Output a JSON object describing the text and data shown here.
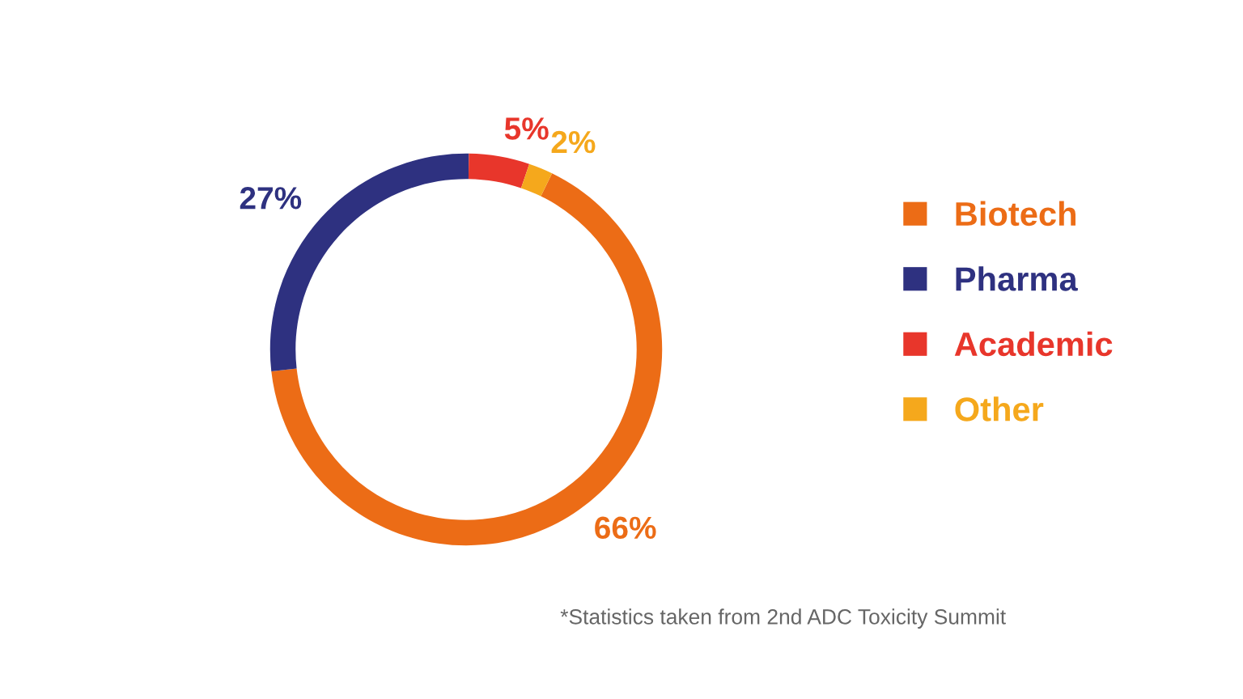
{
  "chart_data": {
    "type": "donut",
    "categories": [
      "Biotech",
      "Pharma",
      "Academic",
      "Other"
    ],
    "values": [
      66,
      27,
      5,
      2
    ],
    "colors": [
      "#ec6c16",
      "#2e3180",
      "#e8362b",
      "#f5a81c"
    ],
    "value_labels": [
      "66%",
      "27%",
      "5%",
      "2%"
    ],
    "legend": "right",
    "annotations": [
      "*Statistics taken from 2nd ADC Toxicity Summit"
    ]
  }
}
